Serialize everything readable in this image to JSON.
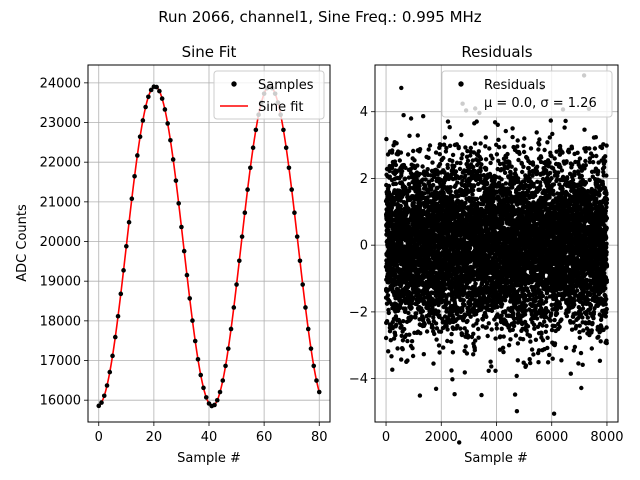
{
  "figure": {
    "suptitle": "Run 2066, channel1, Sine Freq.: 0.995 MHz"
  },
  "chart_data": [
    {
      "type": "line",
      "title": "Sine Fit",
      "xlabel": "Sample #",
      "ylabel": "ADC Counts",
      "xlim": [
        -3.9,
        83.9
      ],
      "ylim": [
        15450,
        24450
      ],
      "xticks": [
        0,
        20,
        40,
        60,
        80
      ],
      "yticks": [
        16000,
        17000,
        18000,
        19000,
        20000,
        21000,
        22000,
        23000,
        24000
      ],
      "grid": true,
      "legend_position": "top-right",
      "fit": {
        "offset": 19880,
        "amplitude": 4030,
        "period": 41.6,
        "peak_sample": 20.4
      },
      "series": [
        {
          "name": "Samples",
          "style": "scatter",
          "color": "#000000",
          "x_start": 0,
          "x_end": 80,
          "x_step": 1
        },
        {
          "name": "Sine fit",
          "style": "line",
          "color": "#ff0000",
          "x_start": 0,
          "x_end": 80,
          "x_step": 0.25
        }
      ]
    },
    {
      "type": "scatter",
      "title": "Residuals",
      "xlabel": "Sample #",
      "ylabel": "",
      "xlim": [
        -400,
        8400
      ],
      "ylim": [
        -5.3,
        5.4
      ],
      "xticks": [
        0,
        2000,
        4000,
        6000,
        8000
      ],
      "yticks": [
        -4,
        -2,
        0,
        2,
        4
      ],
      "grid": true,
      "legend_position": "top-right",
      "series": [
        {
          "name": "Residuals",
          "color": "#000000",
          "n": 8000,
          "mean": 0.0,
          "std": 1.26
        }
      ],
      "stats_text": "μ = 0.0, σ = 1.26"
    }
  ]
}
